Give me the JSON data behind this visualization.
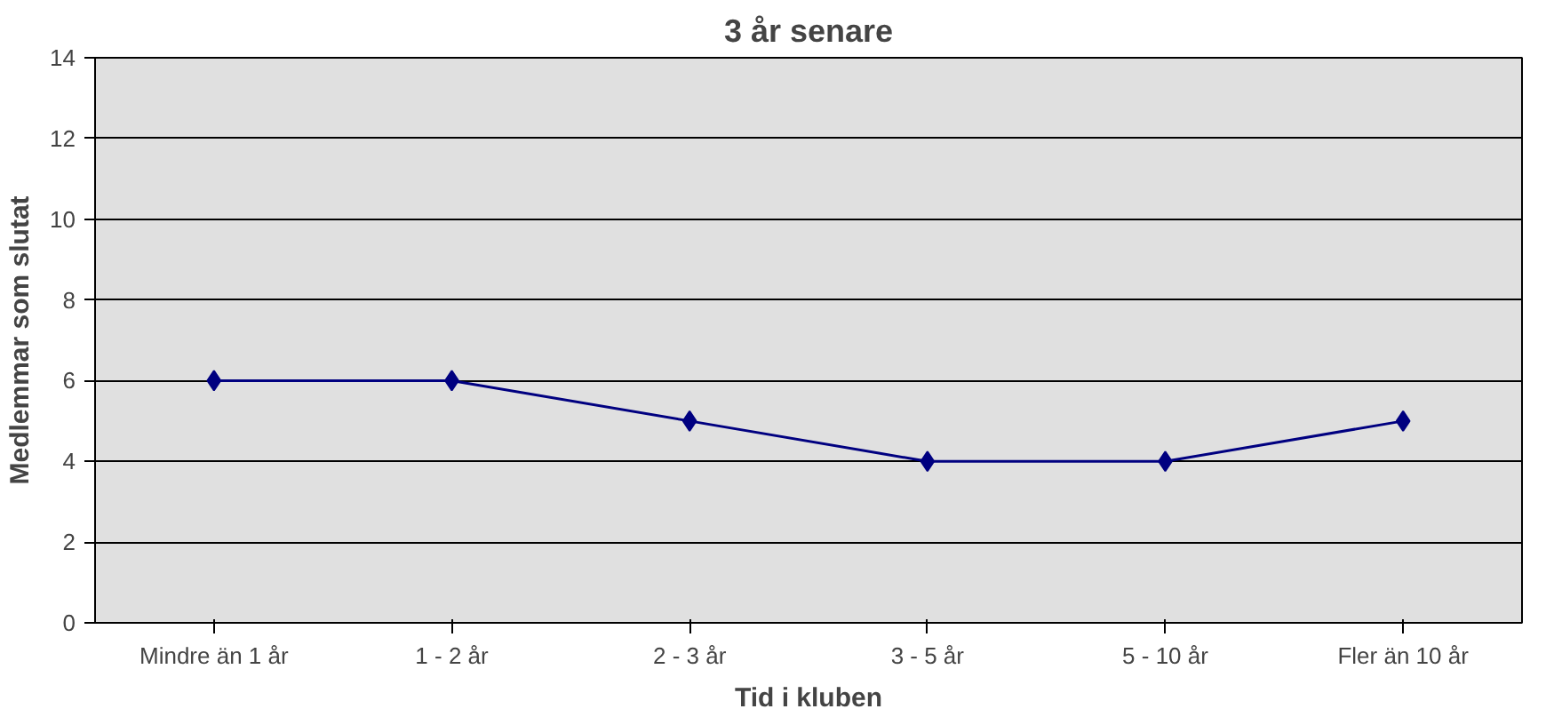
{
  "chart_data": {
    "type": "line",
    "title": "3 år senare",
    "xlabel": "Tid i kluben",
    "ylabel": "Medlemmar som slutat",
    "categories": [
      "Mindre än 1 år",
      "1 - 2 år",
      "2 - 3 år",
      "3 - 5 år",
      "5 - 10 år",
      "Fler än 10 år"
    ],
    "series": [
      {
        "color": "#000080",
        "values": [
          6,
          6,
          5,
          4,
          4,
          5
        ]
      }
    ],
    "ylim": [
      0,
      14
    ],
    "yticks": [
      0,
      2,
      4,
      6,
      8,
      10,
      12,
      14
    ],
    "grid": "y",
    "marker": "diamond",
    "line_style": "solid"
  }
}
